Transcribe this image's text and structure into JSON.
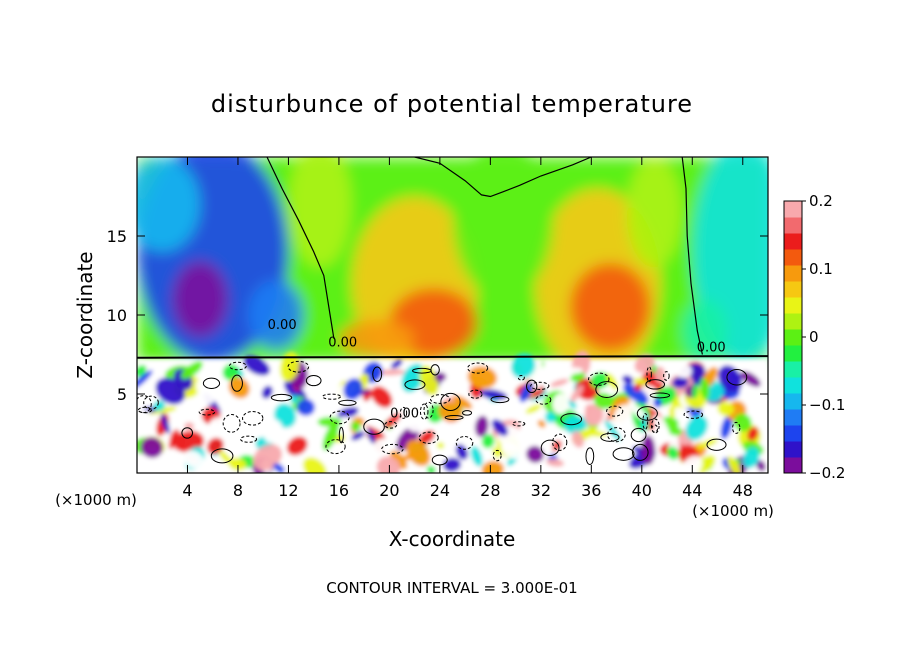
{
  "chart_data": {
    "type": "heatmap",
    "title": "disturbunce of potential temperature",
    "xlabel": "X-coordinate",
    "ylabel": "Z-coordinate",
    "x_unit_left": "(×1000 m)",
    "x_unit_right": "(×1000 m)",
    "footer": "CONTOUR INTERVAL = 3.000E-01",
    "xlim": [
      0,
      50
    ],
    "ylim": [
      0,
      20
    ],
    "x_ticks": [
      4,
      8,
      12,
      16,
      20,
      24,
      28,
      32,
      36,
      40,
      44,
      48
    ],
    "y_ticks": [
      5,
      10,
      15
    ],
    "colorbar": {
      "min": -0.2,
      "max": 0.2,
      "tick_values": [
        0.2,
        0.1,
        0,
        -0.1,
        -0.2
      ],
      "tick_labels": [
        "0.2",
        "0.1",
        "0",
        "−0.1",
        "−0.2"
      ],
      "colors": [
        "#7b0d9c",
        "#2f12c9",
        "#1d44ee",
        "#1f7cf4",
        "#16b7ee",
        "#10e2dd",
        "#19f0a6",
        "#22f040",
        "#5cf014",
        "#aef212",
        "#e9f416",
        "#f6c812",
        "#f79a0d",
        "#f35a0e",
        "#eb1c1c",
        "#f26a6e",
        "#f8a9ad"
      ]
    },
    "contour_interval": 0.3,
    "contour_labels": [
      "0.00",
      "0.00",
      "0.00",
      "0.00"
    ]
  }
}
